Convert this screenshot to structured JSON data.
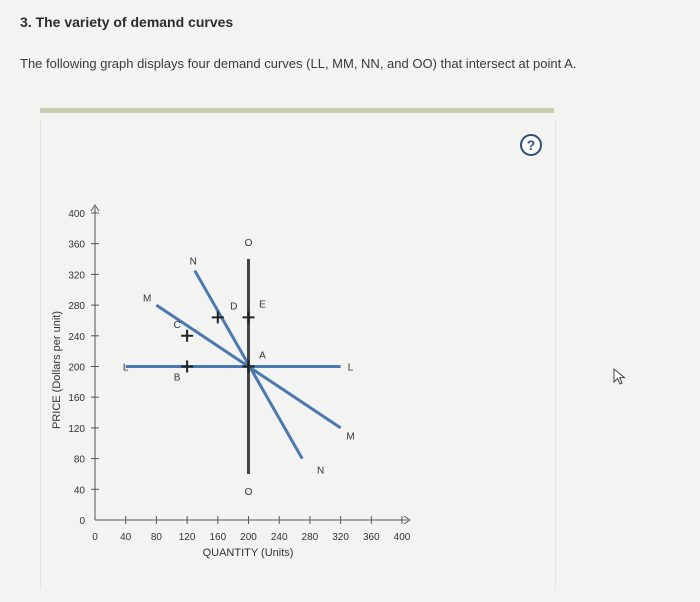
{
  "question": {
    "heading": "3. The variety of demand curves",
    "description": "The following graph displays four demand curves (LL, MM, NN, and OO) that intersect at point A."
  },
  "help_button": {
    "label": "?",
    "icon": "question-mark-icon"
  },
  "cursor": {
    "icon": "mouse-pointer-icon"
  },
  "chart_data": {
    "type": "line",
    "xlabel": "QUANTITY (Units)",
    "ylabel": "PRICE (Dollars per unit)",
    "xlim": [
      0,
      400
    ],
    "ylim": [
      0,
      400
    ],
    "xticks": [
      0,
      40,
      80,
      120,
      160,
      200,
      240,
      280,
      320,
      360,
      400
    ],
    "yticks": [
      0,
      40,
      80,
      120,
      160,
      200,
      240,
      280,
      320,
      360,
      400
    ],
    "colors": {
      "curve": "#4a78b0",
      "vertical": "#444444",
      "axis": "#555555"
    },
    "series": [
      {
        "name": "L",
        "points": [
          [
            40,
            200
          ],
          [
            320,
            200
          ]
        ],
        "color": "#4a78b0"
      },
      {
        "name": "M",
        "points": [
          [
            80,
            280
          ],
          [
            320,
            120
          ]
        ],
        "color": "#4a78b0"
      },
      {
        "name": "N",
        "points": [
          [
            130,
            325
          ],
          [
            270,
            80
          ]
        ],
        "color": "#4a78b0"
      },
      {
        "name": "O",
        "points": [
          [
            200,
            340
          ],
          [
            200,
            60
          ]
        ],
        "color": "#444444"
      }
    ],
    "curve_labels": [
      {
        "text": "L",
        "x": 40,
        "y": 200
      },
      {
        "text": "L",
        "x": 333,
        "y": 200
      },
      {
        "text": "M",
        "x": 68,
        "y": 290
      },
      {
        "text": "M",
        "x": 333,
        "y": 110
      },
      {
        "text": "N",
        "x": 128,
        "y": 338
      },
      {
        "text": "N",
        "x": 294,
        "y": 66
      },
      {
        "text": "O",
        "x": 200,
        "y": 362
      },
      {
        "text": "O",
        "x": 200,
        "y": 38
      }
    ],
    "points": [
      {
        "label": "A",
        "x": 200,
        "y": 200
      },
      {
        "label": "B",
        "x": 120,
        "y": 200
      },
      {
        "label": "C",
        "x": 120,
        "y": 240
      },
      {
        "label": "D",
        "x": 160,
        "y": 264
      },
      {
        "label": "E",
        "x": 200,
        "y": 264
      }
    ]
  }
}
